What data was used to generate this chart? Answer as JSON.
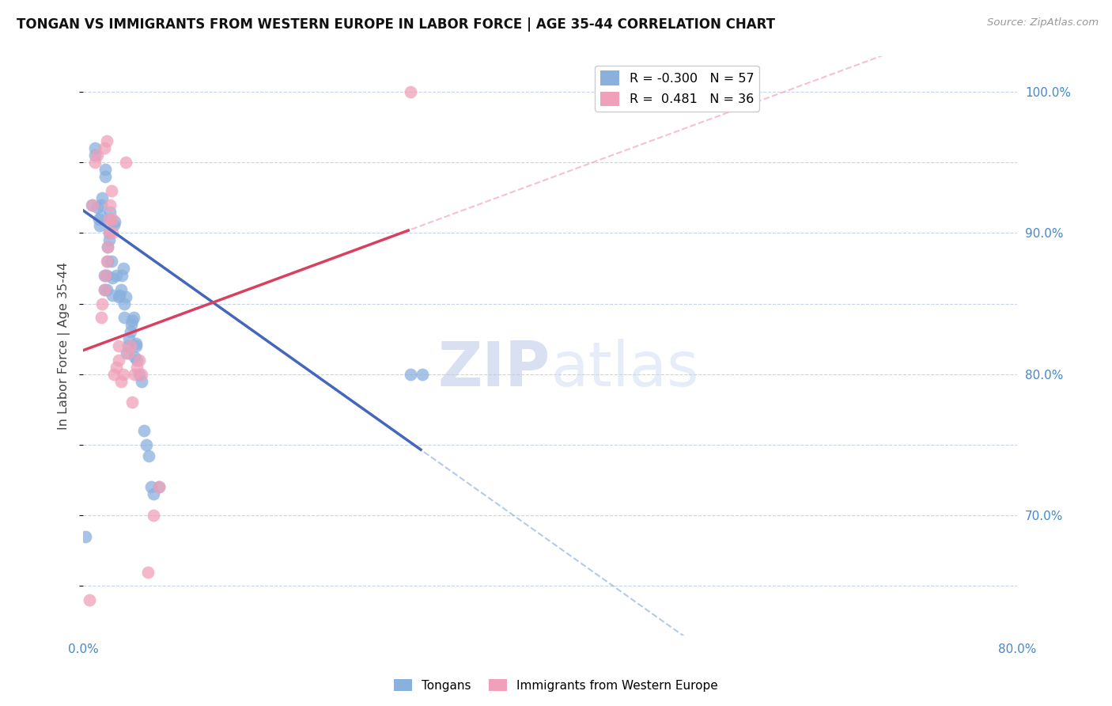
{
  "title": "TONGAN VS IMMIGRANTS FROM WESTERN EUROPE IN LABOR FORCE | AGE 35-44 CORRELATION CHART",
  "source": "Source: ZipAtlas.com",
  "ylabel": "In Labor Force | Age 35-44",
  "watermark_zip": "ZIP",
  "watermark_atlas": "atlas",
  "blue_R": -0.3,
  "blue_N": 57,
  "pink_R": 0.481,
  "pink_N": 36,
  "xlim": [
    0.0,
    0.8
  ],
  "ylim": [
    0.615,
    1.025
  ],
  "right_yticks": [
    1.0,
    0.9,
    0.8,
    0.7
  ],
  "right_yticklabels": [
    "100.0%",
    "90.0%",
    "80.0%",
    "70.0%"
  ],
  "bottom_xtick_positions": [
    0.0,
    0.1,
    0.2,
    0.3,
    0.4,
    0.5,
    0.6,
    0.7,
    0.8
  ],
  "blue_color": "#8ab0de",
  "blue_color_dark": "#4466bb",
  "pink_color": "#f0a0b8",
  "pink_line_color": "#d94060",
  "grid_color": "#c8d4e8",
  "background_color": "#ffffff",
  "blue_scatter_x": [
    0.002,
    0.007,
    0.01,
    0.01,
    0.012,
    0.013,
    0.014,
    0.015,
    0.015,
    0.016,
    0.018,
    0.018,
    0.019,
    0.019,
    0.02,
    0.02,
    0.021,
    0.021,
    0.022,
    0.022,
    0.023,
    0.023,
    0.024,
    0.025,
    0.025,
    0.026,
    0.027,
    0.028,
    0.03,
    0.031,
    0.032,
    0.033,
    0.034,
    0.035,
    0.035,
    0.036,
    0.037,
    0.038,
    0.039,
    0.04,
    0.041,
    0.042,
    0.043,
    0.044,
    0.045,
    0.045,
    0.046,
    0.048,
    0.05,
    0.052,
    0.054,
    0.056,
    0.058,
    0.06,
    0.065,
    0.28,
    0.29
  ],
  "blue_scatter_y": [
    0.685,
    0.92,
    0.955,
    0.96,
    0.918,
    0.91,
    0.905,
    0.912,
    0.92,
    0.925,
    0.86,
    0.87,
    0.94,
    0.945,
    0.86,
    0.87,
    0.88,
    0.89,
    0.895,
    0.9,
    0.91,
    0.915,
    0.88,
    0.856,
    0.868,
    0.906,
    0.908,
    0.87,
    0.855,
    0.856,
    0.86,
    0.87,
    0.875,
    0.84,
    0.85,
    0.855,
    0.815,
    0.82,
    0.825,
    0.83,
    0.835,
    0.838,
    0.84,
    0.812,
    0.82,
    0.822,
    0.81,
    0.8,
    0.795,
    0.76,
    0.75,
    0.742,
    0.72,
    0.715,
    0.72,
    0.8,
    0.8
  ],
  "pink_scatter_x": [
    0.005,
    0.008,
    0.01,
    0.012,
    0.015,
    0.016,
    0.018,
    0.019,
    0.02,
    0.021,
    0.022,
    0.022,
    0.023,
    0.024,
    0.025,
    0.025,
    0.026,
    0.028,
    0.03,
    0.03,
    0.032,
    0.034,
    0.036,
    0.038,
    0.04,
    0.042,
    0.044,
    0.046,
    0.048,
    0.05,
    0.055,
    0.06,
    0.065,
    0.28,
    0.018,
    0.02
  ],
  "pink_scatter_y": [
    0.64,
    0.92,
    0.95,
    0.955,
    0.84,
    0.85,
    0.86,
    0.87,
    0.88,
    0.89,
    0.9,
    0.91,
    0.92,
    0.93,
    0.9,
    0.91,
    0.8,
    0.805,
    0.81,
    0.82,
    0.795,
    0.8,
    0.95,
    0.815,
    0.82,
    0.78,
    0.8,
    0.805,
    0.81,
    0.8,
    0.66,
    0.7,
    0.72,
    1.0,
    0.96,
    0.965
  ]
}
